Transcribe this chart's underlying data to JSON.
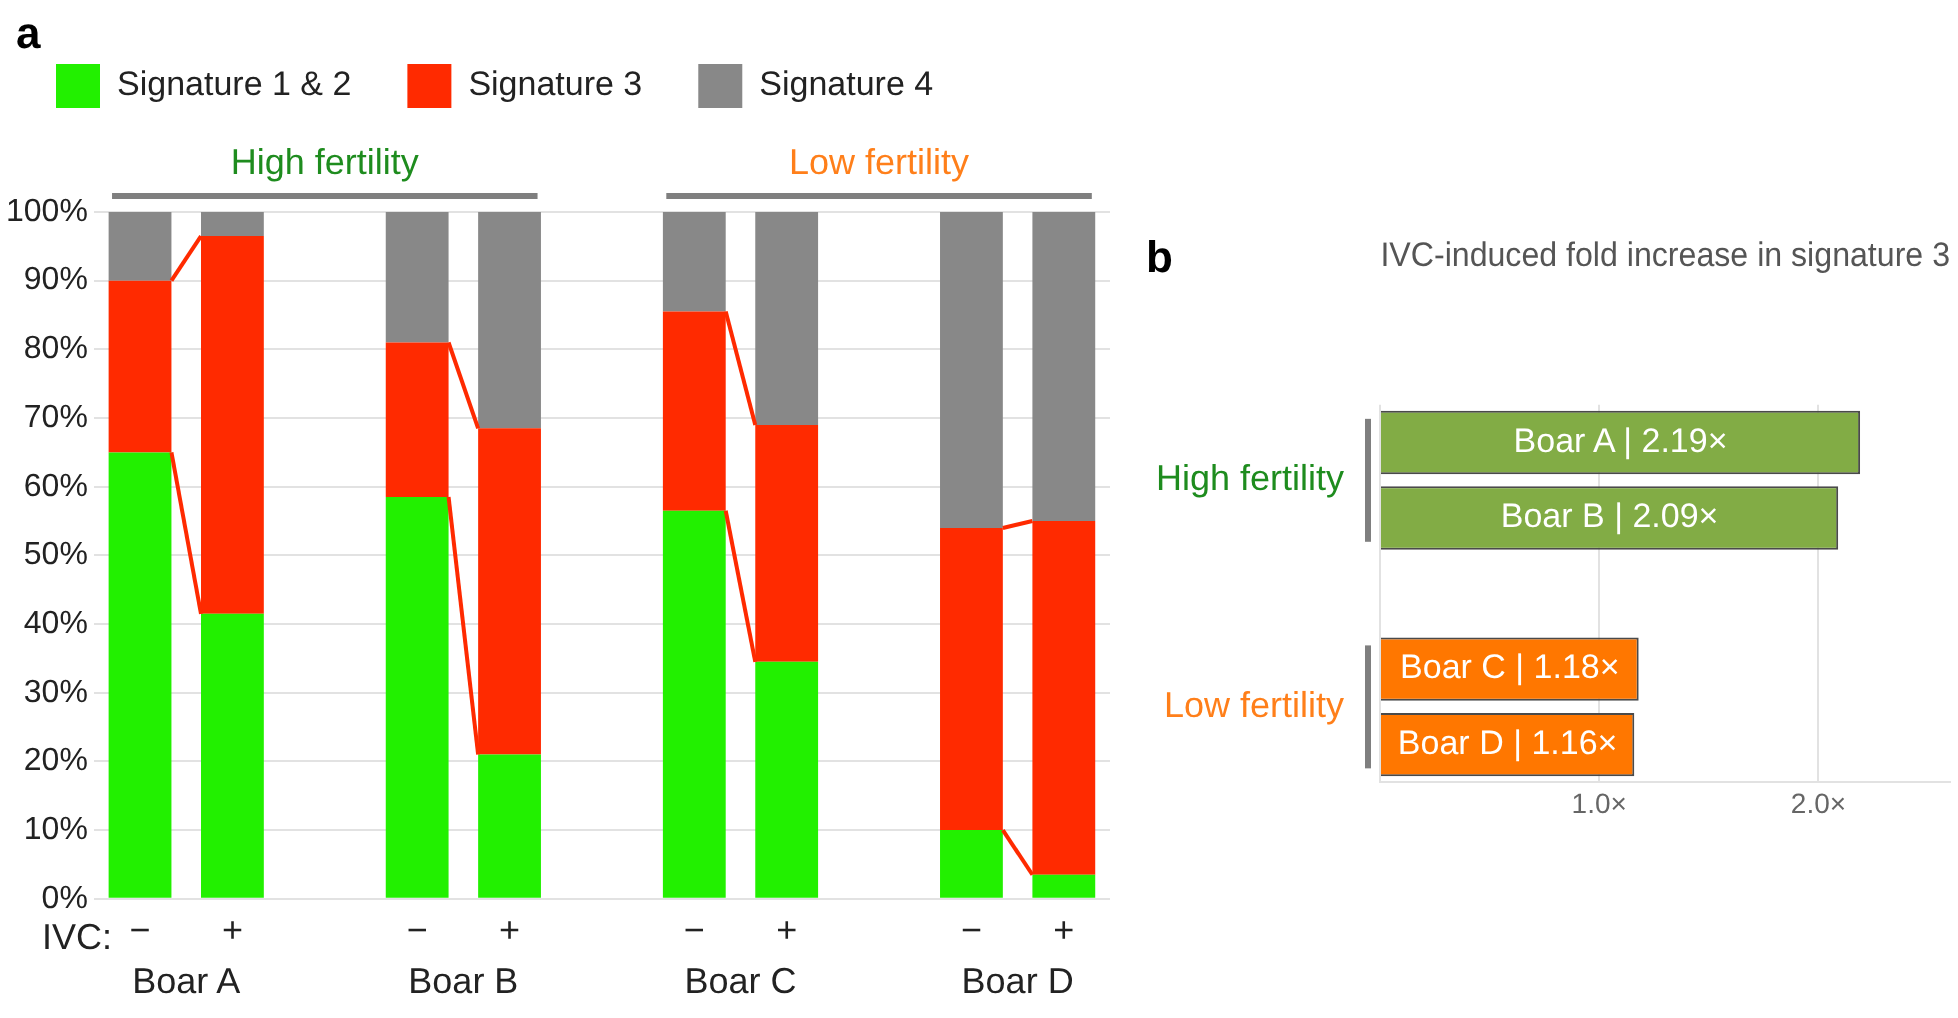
{
  "chart_data": [
    {
      "type": "bar",
      "stacked": true,
      "categories": [
        "−",
        "+",
        null,
        "−",
        "+",
        null,
        "−",
        "+",
        null,
        "−",
        "+"
      ],
      "series": [
        {
          "name": "Signature 1 & 2",
          "color": "#22f000",
          "values": [
            65,
            41.5,
            null,
            58.5,
            21,
            null,
            56.5,
            34.5,
            null,
            10,
            3.5
          ]
        },
        {
          "name": "Signature 3",
          "color": "#ff2a00",
          "values": [
            25,
            55,
            null,
            22.5,
            47.5,
            null,
            29,
            34.5,
            null,
            44,
            51.5
          ]
        },
        {
          "name": "Signature 4",
          "color": "#888888",
          "values": [
            10,
            3.5,
            null,
            19,
            31.5,
            null,
            14.5,
            31,
            null,
            46,
            45
          ]
        }
      ],
      "ylim": [
        0,
        100
      ],
      "yticks": [
        {
          "value": 0,
          "label": "0%"
        },
        {
          "value": 10,
          "label": "10%"
        },
        {
          "value": 20,
          "label": "20%"
        },
        {
          "value": 30,
          "label": "30%"
        },
        {
          "value": 40,
          "label": "40%"
        },
        {
          "value": 50,
          "label": "50%"
        },
        {
          "value": 60,
          "label": "60%"
        },
        {
          "value": 70,
          "label": "70%"
        },
        {
          "value": 80,
          "label": "80%"
        },
        {
          "value": 90,
          "label": "90%"
        },
        {
          "value": 100,
          "label": "100%"
        }
      ],
      "grid": "y",
      "legend": "top left",
      "annotations": [
        "a",
        "IVC:",
        "Boar A",
        "Boar B",
        "Boar C",
        "Boar D",
        "High fertility",
        "Low fertility"
      ]
    },
    {
      "type": "bar",
      "orientation": "horizontal",
      "title": "IVC-induced fold increase in signature 3",
      "categories": [
        null,
        null,
        null,
        null,
        null
      ],
      "values": [
        2.19,
        2.09,
        null,
        1.18,
        1.16
      ],
      "colors": [
        "#82ac45",
        "#82ac45",
        null,
        "#ff7700",
        "#ff7700"
      ],
      "value_labels": [
        "Boar A | 2.19×",
        "Boar B | 2.09×",
        null,
        "Boar C | 1.18×",
        "Boar D | 1.16×"
      ],
      "xlim": [
        0,
        2.6
      ],
      "xticks": [
        {
          "value": 0,
          "label": null
        },
        {
          "value": 1,
          "label": "1.0×"
        },
        {
          "value": 2,
          "label": "2.0×"
        }
      ],
      "grid": "x",
      "annotations": [
        "b",
        "High fertility",
        "Low fertility"
      ]
    }
  ]
}
